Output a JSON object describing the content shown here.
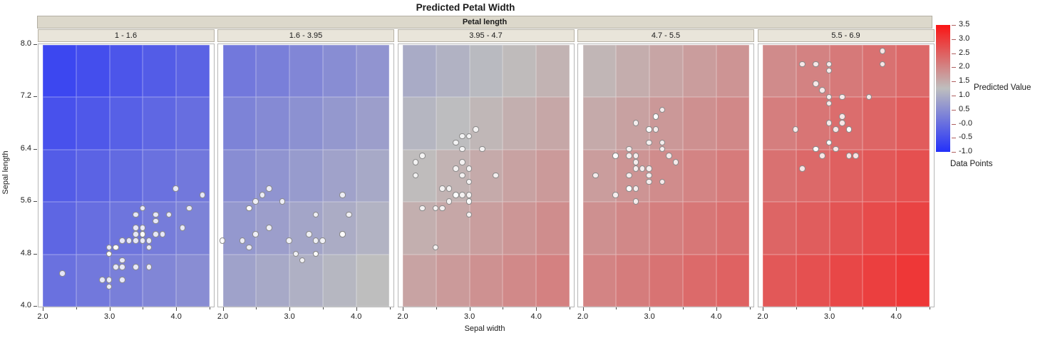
{
  "title": "Predicted Petal Width",
  "facet_header": "Petal length",
  "axes": {
    "x": {
      "label": "Sepal width",
      "tick_values": [
        2.0,
        2.5,
        3.0,
        3.5,
        4.0,
        4.5
      ],
      "labeled_ticks": [
        "2.0",
        "3.0",
        "4.0"
      ],
      "range": [
        2.0,
        4.5
      ]
    },
    "y": {
      "label": "Sepal length",
      "tick_labels": [
        "8.0",
        "7.2",
        "6.4",
        "5.6",
        "4.8",
        "4.0"
      ],
      "tick_values": [
        8.0,
        7.2,
        6.4,
        5.6,
        4.8,
        4.0
      ],
      "range": [
        4.0,
        8.0
      ]
    }
  },
  "legend": {
    "gradient_label": "Predicted Value",
    "points_label": "Data Points",
    "tick_labels": [
      "3.5",
      "3.0",
      "2.5",
      "2.0",
      "1.5",
      "1.0",
      "0.5",
      "-0.0",
      "-0.5",
      "-1.0"
    ],
    "top_color": "#fa1414",
    "mid_color": "#bebebe",
    "bottom_color": "#2330fa"
  },
  "chart_data": {
    "type": "heatmap",
    "subtype": "faceted-heatmap-with-scatter",
    "title": "Predicted Petal Width",
    "facet_variable": "Petal length",
    "x_variable": "Sepal width",
    "y_variable": "Sepal length",
    "x_range": [
      2.0,
      4.5
    ],
    "y_range": [
      4.0,
      8.0
    ],
    "cell_grid": {
      "x_step": 0.5,
      "y_step": 0.8,
      "columns_x_centers": [
        2.25,
        2.75,
        3.25,
        3.75,
        4.25
      ],
      "rows_y_centers_top_to_bottom": [
        7.6,
        6.8,
        6.0,
        5.2,
        4.4
      ]
    },
    "color_scale": {
      "label": "Predicted Value",
      "stops": [
        {
          "value": -1.0,
          "color": "#2330fa"
        },
        {
          "value": 1.25,
          "color": "#bebebe"
        },
        {
          "value": 3.5,
          "color": "#fa1414"
        }
      ],
      "ticks": [
        3.5,
        3.0,
        2.5,
        2.0,
        1.5,
        1.0,
        0.5,
        -0.0,
        -0.5,
        -1.0
      ]
    },
    "facets": [
      {
        "label": "1 - 1.6",
        "petal_length_bin": [
          1.0,
          1.6
        ],
        "heat_values_rows_top_to_bottom": [
          [
            -0.63,
            -0.52,
            -0.41,
            -0.3,
            -0.19
          ],
          [
            -0.47,
            -0.36,
            -0.24,
            -0.13,
            -0.02
          ],
          [
            -0.3,
            -0.19,
            -0.08,
            0.03,
            0.14
          ],
          [
            -0.14,
            -0.02,
            0.09,
            0.2,
            0.31
          ],
          [
            0.03,
            0.14,
            0.25,
            0.36,
            0.48
          ]
        ],
        "points_sw_sl": [
          [
            3.5,
            5.1
          ],
          [
            3.0,
            4.9
          ],
          [
            3.2,
            4.7
          ],
          [
            3.1,
            4.6
          ],
          [
            3.6,
            5.0
          ],
          [
            3.4,
            4.6
          ],
          [
            3.4,
            5.0
          ],
          [
            2.9,
            4.4
          ],
          [
            3.1,
            4.9
          ],
          [
            3.7,
            5.4
          ],
          [
            3.0,
            4.8
          ],
          [
            3.0,
            4.3
          ],
          [
            4.0,
            5.8
          ],
          [
            4.4,
            5.7
          ],
          [
            3.9,
            5.4
          ],
          [
            3.5,
            5.1
          ],
          [
            3.8,
            5.1
          ],
          [
            3.7,
            5.1
          ],
          [
            3.6,
            4.6
          ],
          [
            3.5,
            5.2
          ],
          [
            3.4,
            5.2
          ],
          [
            3.4,
            5.4
          ],
          [
            4.1,
            5.2
          ],
          [
            4.2,
            5.5
          ],
          [
            3.1,
            4.9
          ],
          [
            3.2,
            5.0
          ],
          [
            3.5,
            5.5
          ],
          [
            3.6,
            4.9
          ],
          [
            3.0,
            4.4
          ],
          [
            3.4,
            5.1
          ],
          [
            3.5,
            5.0
          ],
          [
            2.3,
            4.5
          ],
          [
            3.2,
            4.4
          ],
          [
            3.0,
            4.8
          ],
          [
            3.2,
            4.6
          ],
          [
            3.7,
            5.3
          ],
          [
            3.3,
            5.0
          ]
        ]
      },
      {
        "label": "1.6 - 3.95",
        "petal_length_bin": [
          1.6,
          3.95
        ],
        "heat_values_rows_top_to_bottom": [
          [
            0.14,
            0.25,
            0.36,
            0.47,
            0.59
          ],
          [
            0.31,
            0.42,
            0.53,
            0.64,
            0.75
          ],
          [
            0.47,
            0.58,
            0.69,
            0.81,
            0.92
          ],
          [
            0.64,
            0.75,
            0.86,
            0.97,
            1.08
          ],
          [
            0.8,
            0.91,
            1.03,
            1.14,
            1.25
          ]
        ],
        "points_sw_sl": [
          [
            3.9,
            5.4
          ],
          [
            3.8,
            5.7
          ],
          [
            3.4,
            5.4
          ],
          [
            3.3,
            5.1
          ],
          [
            3.4,
            4.8
          ],
          [
            3.8,
            5.1
          ],
          [
            3.4,
            4.8
          ],
          [
            3.0,
            5.0
          ],
          [
            3.4,
            5.0
          ],
          [
            3.2,
            4.7
          ],
          [
            3.1,
            4.8
          ],
          [
            3.5,
            5.0
          ],
          [
            3.8,
            5.1
          ],
          [
            2.4,
            4.9
          ],
          [
            2.7,
            5.2
          ],
          [
            2.0,
            5.0
          ],
          [
            2.9,
            5.6
          ],
          [
            2.5,
            5.6
          ],
          [
            2.6,
            5.7
          ],
          [
            2.4,
            5.5
          ],
          [
            2.4,
            5.5
          ],
          [
            2.7,
            5.8
          ],
          [
            2.3,
            5.0
          ],
          [
            2.5,
            5.1
          ]
        ]
      },
      {
        "label": "3.95 - 4.7",
        "petal_length_bin": [
          3.95,
          4.7
        ],
        "heat_values_rows_top_to_bottom": [
          [
            0.95,
            1.06,
            1.18,
            1.29,
            1.4
          ],
          [
            1.12,
            1.23,
            1.34,
            1.45,
            1.56
          ],
          [
            1.28,
            1.4,
            1.51,
            1.62,
            1.73
          ],
          [
            1.45,
            1.56,
            1.67,
            1.78,
            1.9
          ],
          [
            1.61,
            1.73,
            1.84,
            1.95,
            2.06
          ]
        ],
        "points_sw_sl": [
          [
            2.3,
            5.5
          ],
          [
            2.8,
            6.5
          ],
          [
            2.8,
            5.7
          ],
          [
            2.9,
            6.6
          ],
          [
            3.0,
            5.9
          ],
          [
            2.2,
            6.0
          ],
          [
            3.1,
            6.7
          ],
          [
            3.0,
            5.6
          ],
          [
            2.7,
            5.8
          ],
          [
            2.2,
            6.2
          ],
          [
            2.8,
            6.1
          ],
          [
            2.9,
            6.4
          ],
          [
            3.0,
            6.6
          ],
          [
            2.9,
            6.0
          ],
          [
            3.0,
            5.4
          ],
          [
            3.4,
            6.0
          ],
          [
            2.3,
            6.3
          ],
          [
            3.0,
            5.6
          ],
          [
            2.5,
            5.5
          ],
          [
            2.6,
            5.5
          ],
          [
            3.0,
            6.1
          ],
          [
            2.6,
            5.8
          ],
          [
            2.7,
            5.6
          ],
          [
            3.0,
            5.7
          ],
          [
            2.9,
            5.7
          ],
          [
            2.9,
            6.2
          ],
          [
            2.8,
            5.7
          ],
          [
            3.2,
            6.4
          ],
          [
            2.5,
            4.9
          ]
        ]
      },
      {
        "label": "4.7 - 5.5",
        "petal_length_bin": [
          4.7,
          5.5
        ],
        "heat_values_rows_top_to_bottom": [
          [
            1.36,
            1.47,
            1.58,
            1.69,
            1.8
          ],
          [
            1.52,
            1.64,
            1.75,
            1.86,
            1.97
          ],
          [
            1.69,
            1.8,
            1.91,
            2.02,
            2.14
          ],
          [
            1.86,
            1.97,
            2.08,
            2.19,
            2.3
          ],
          [
            2.02,
            2.13,
            2.24,
            2.36,
            2.47
          ]
        ],
        "points_sw_sl": [
          [
            3.2,
            7.0
          ],
          [
            3.3,
            6.3
          ],
          [
            2.9,
            6.1
          ],
          [
            3.2,
            5.9
          ],
          [
            2.5,
            6.3
          ],
          [
            2.8,
            6.1
          ],
          [
            2.8,
            6.8
          ],
          [
            3.0,
            6.7
          ],
          [
            2.7,
            6.0
          ],
          [
            3.1,
            6.7
          ],
          [
            3.1,
            6.9
          ],
          [
            2.7,
            6.3
          ],
          [
            2.8,
            5.6
          ],
          [
            2.8,
            6.2
          ],
          [
            3.0,
            6.1
          ],
          [
            2.2,
            6.0
          ],
          [
            2.5,
            5.7
          ],
          [
            2.5,
            6.3
          ],
          [
            3.0,
            6.0
          ],
          [
            3.1,
            6.9
          ],
          [
            3.4,
            6.2
          ],
          [
            2.7,
            5.8
          ],
          [
            2.7,
            5.8
          ],
          [
            3.2,
            6.5
          ],
          [
            2.8,
            5.8
          ],
          [
            2.8,
            6.3
          ],
          [
            3.1,
            6.9
          ],
          [
            3.0,
            5.9
          ],
          [
            2.7,
            6.4
          ],
          [
            3.2,
            6.4
          ],
          [
            3.0,
            6.7
          ],
          [
            3.0,
            6.5
          ]
        ]
      },
      {
        "label": "5.5 - 6.9",
        "petal_length_bin": [
          5.5,
          6.9
        ],
        "heat_values_rows_top_to_bottom": [
          [
            1.93,
            2.05,
            2.16,
            2.27,
            2.38
          ],
          [
            2.1,
            2.21,
            2.32,
            2.43,
            2.55
          ],
          [
            2.27,
            2.38,
            2.49,
            2.6,
            2.71
          ],
          [
            2.43,
            2.54,
            2.65,
            2.77,
            2.88
          ],
          [
            2.6,
            2.71,
            2.82,
            2.93,
            3.04
          ]
        ],
        "points_sw_sl": [
          [
            3.0,
            6.8
          ],
          [
            3.0,
            6.5
          ],
          [
            3.1,
            6.4
          ],
          [
            2.9,
            6.3
          ],
          [
            2.8,
            6.4
          ],
          [
            2.8,
            6.4
          ],
          [
            2.6,
            6.1
          ],
          [
            3.4,
            6.3
          ],
          [
            3.1,
            6.7
          ],
          [
            3.2,
            6.9
          ],
          [
            3.3,
            6.7
          ],
          [
            3.3,
            6.7
          ],
          [
            3.0,
            6.5
          ],
          [
            2.5,
            6.7
          ],
          [
            3.0,
            7.2
          ],
          [
            3.0,
            7.1
          ],
          [
            3.2,
            6.8
          ],
          [
            3.3,
            6.3
          ],
          [
            3.2,
            7.2
          ],
          [
            3.6,
            7.2
          ],
          [
            2.8,
            7.4
          ],
          [
            3.0,
            7.7
          ],
          [
            2.9,
            7.3
          ],
          [
            3.8,
            7.9
          ],
          [
            3.0,
            7.6
          ],
          [
            3.8,
            7.7
          ],
          [
            2.8,
            7.7
          ],
          [
            2.6,
            7.7
          ]
        ]
      }
    ]
  }
}
